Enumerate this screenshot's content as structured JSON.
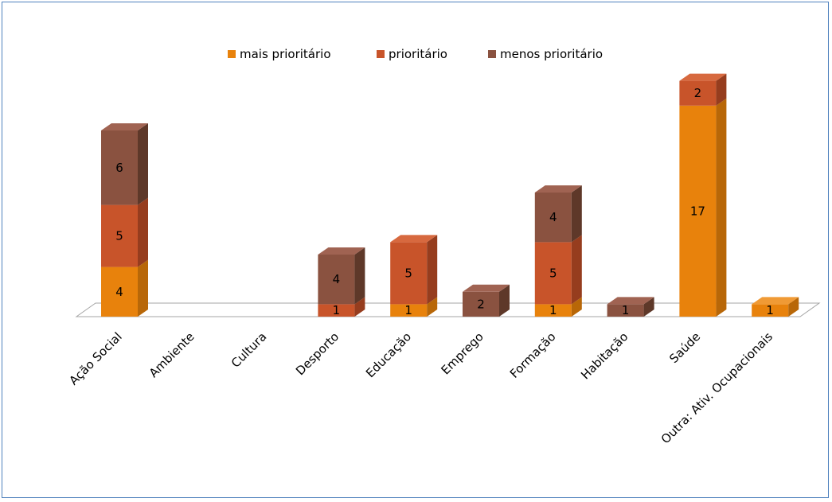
{
  "chart_data": {
    "type": "bar",
    "stacked": true,
    "three_d": true,
    "categories": [
      "Ação Social",
      "Ambiente",
      "Cultura",
      "Desporto",
      "Educação",
      "Emprego",
      "Formação",
      "Habitação",
      "Saúde",
      "Outra: Ativ. Ocupacionais"
    ],
    "series": [
      {
        "name": "mais prioritário",
        "values": [
          4,
          0,
          0,
          0,
          1,
          0,
          1,
          0,
          17,
          1
        ],
        "color": "#e8820c",
        "side": "#b86708",
        "top": "#f09a35"
      },
      {
        "name": "prioritário",
        "values": [
          5,
          0,
          0,
          1,
          5,
          0,
          5,
          0,
          2,
          0
        ],
        "color": "#c8542a",
        "side": "#963d1e",
        "top": "#d7693f"
      },
      {
        "name": "menos prioritário",
        "values": [
          6,
          0,
          0,
          4,
          0,
          2,
          4,
          1,
          0,
          0
        ],
        "color": "#8a5240",
        "side": "#5e3829",
        "top": "#a06352"
      }
    ],
    "legend_position": "top",
    "grid": false
  }
}
